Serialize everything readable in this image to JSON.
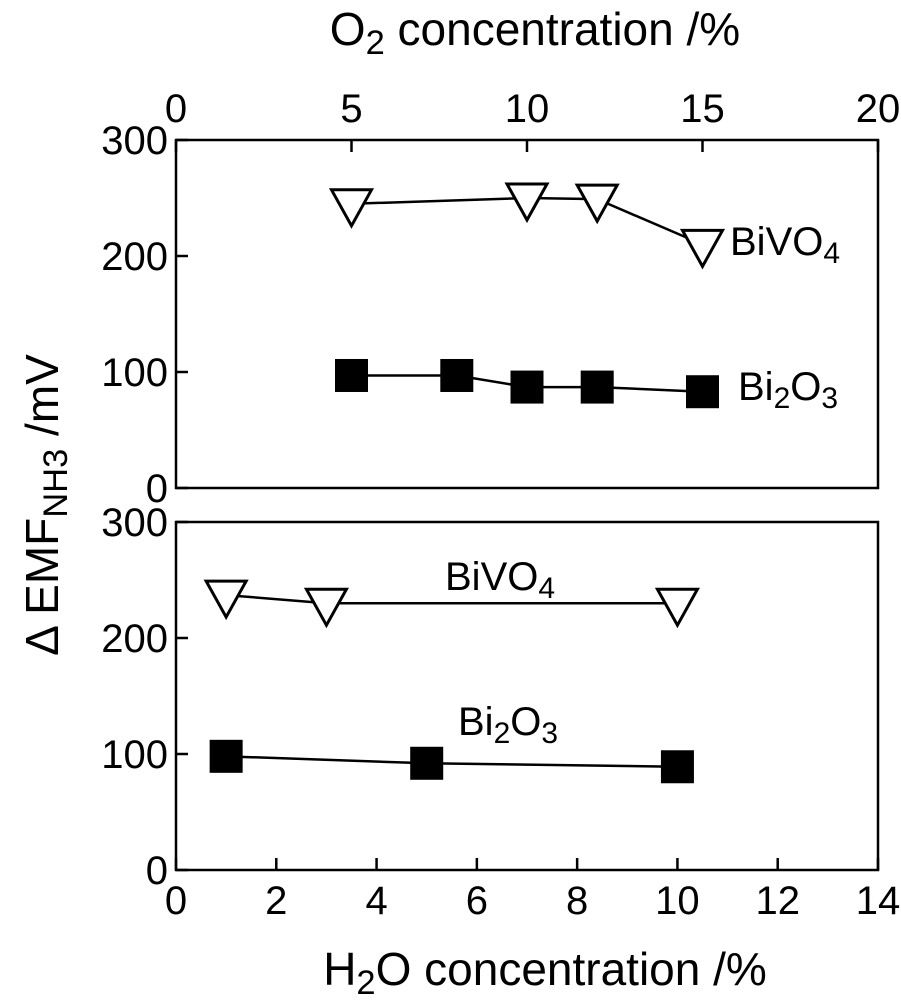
{
  "chart_data": [
    {
      "type": "line",
      "panel": "top",
      "x_axis_title_base": "O",
      "x_axis_title_sub": "2",
      "x_axis_title_rest": " concentration /%",
      "xlim": [
        0,
        20
      ],
      "x_ticks": [
        0,
        5,
        10,
        15,
        20
      ],
      "x_tick_labels": [
        "0",
        "5",
        "10",
        "15",
        "20"
      ],
      "ylim": [
        0,
        300
      ],
      "y_ticks": [
        0,
        100,
        200,
        300
      ],
      "y_tick_labels": [
        "0",
        "100",
        "200",
        "300"
      ],
      "series": [
        {
          "name": "BiVO4",
          "label_base": "BiVO",
          "label_sub": "4",
          "label_sub_pos": "end",
          "marker": "triangle-down-open",
          "x": [
            5,
            10,
            12,
            15
          ],
          "y": [
            245,
            250,
            249,
            210
          ]
        },
        {
          "name": "Bi2O3",
          "label_base": "Bi",
          "label_sub": "2",
          "label_rest_base": "O",
          "label_rest_sub": "3",
          "marker": "square-filled",
          "x": [
            5,
            8,
            10,
            12,
            15
          ],
          "y": [
            97,
            97,
            87,
            87,
            83
          ]
        }
      ]
    },
    {
      "type": "line",
      "panel": "bottom",
      "x_axis_title_base": "H",
      "x_axis_title_sub": "2",
      "x_axis_title_rest": "O concentration /%",
      "xlim": [
        0,
        14
      ],
      "x_ticks": [
        0,
        2,
        4,
        6,
        8,
        10,
        12,
        14
      ],
      "x_tick_labels": [
        "0",
        "2",
        "4",
        "6",
        "8",
        "10",
        "12",
        "14"
      ],
      "ylim": [
        0,
        300
      ],
      "y_ticks": [
        0,
        100,
        200,
        300
      ],
      "y_tick_labels": [
        "0",
        "100",
        "200",
        "300"
      ],
      "series": [
        {
          "name": "BiVO4",
          "label_base": "BiVO",
          "label_sub": "4",
          "marker": "triangle-down-open",
          "x": [
            1,
            3,
            10
          ],
          "y": [
            237,
            230,
            230
          ]
        },
        {
          "name": "Bi2O3",
          "label_base": "Bi",
          "label_sub": "2",
          "label_rest_base": "O",
          "label_rest_sub": "3",
          "marker": "square-filled",
          "x": [
            1,
            5,
            10
          ],
          "y": [
            98,
            92,
            89
          ]
        }
      ]
    }
  ],
  "y_axis_title_prefix": "Δ EMF",
  "y_axis_title_sub": "NH3",
  "y_axis_title_suffix": " /mV"
}
